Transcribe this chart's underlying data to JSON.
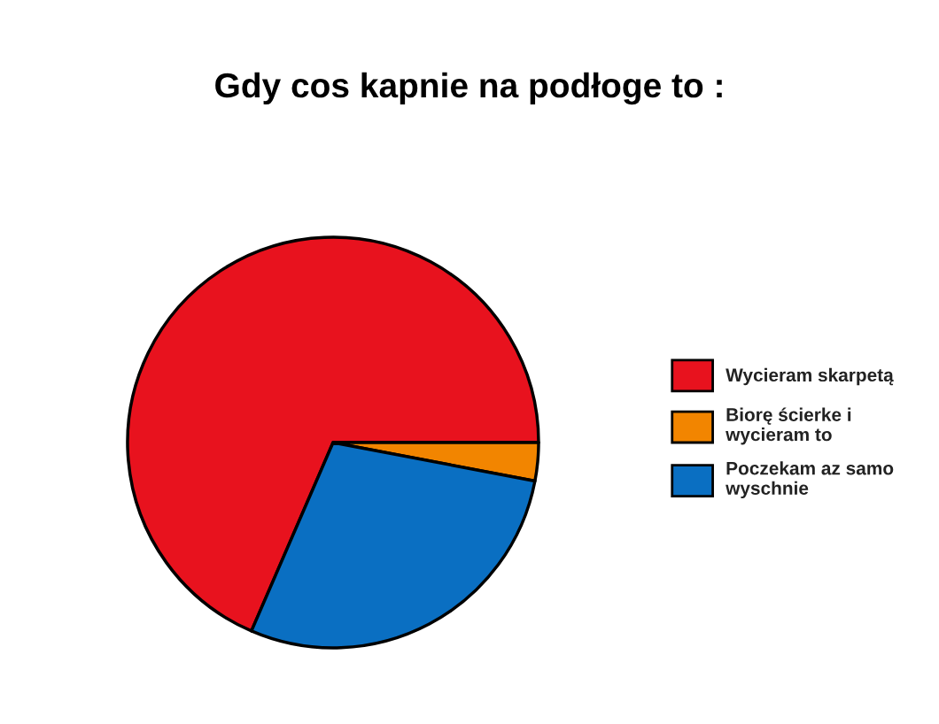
{
  "chart_data": {
    "type": "pie",
    "title": "Gdy cos kapnie na podłoge to :",
    "categories": [
      "Wycieram skarpetą",
      "Biorę ścierke i\nwycieram to",
      "Poczekam az samo\nwyschnie"
    ],
    "values": [
      68.5,
      3,
      28.5
    ],
    "colors": [
      "#e8121e",
      "#f28500",
      "#0a6fc2"
    ],
    "legend": "right"
  }
}
